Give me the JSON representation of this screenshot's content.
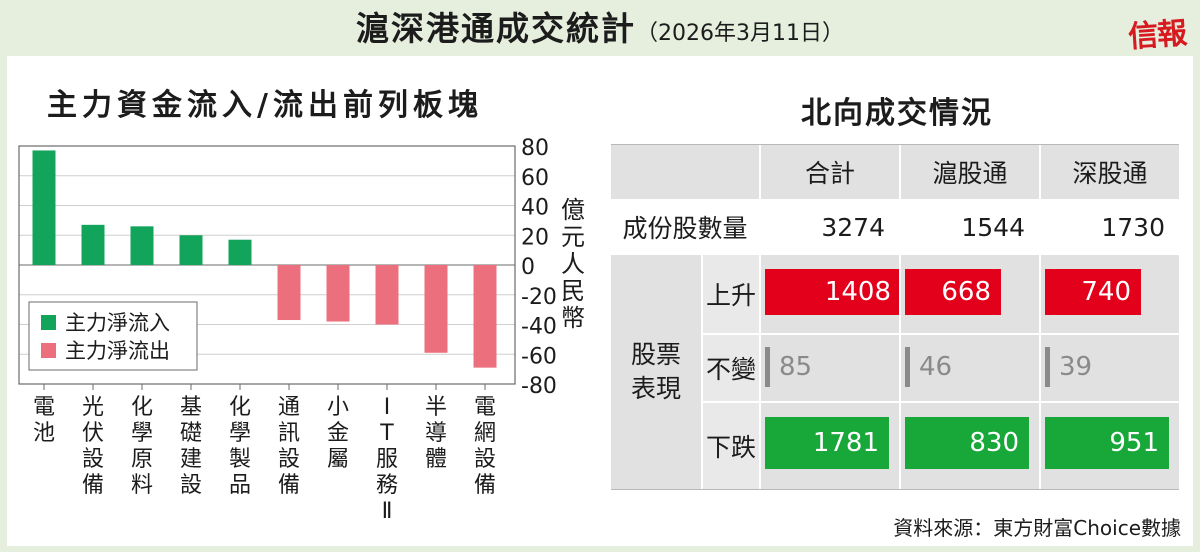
{
  "header": {
    "title": "滬深港通成交統計",
    "date": "（2026年3月11日）",
    "brand": "信報"
  },
  "chart_data": [
    {
      "type": "bar",
      "title": "主力資金流入/流出前列板塊",
      "categories": [
        "電池",
        "光伏設備",
        "化學原料",
        "基礎建設",
        "化學製品",
        "通訊設備",
        "小金屬",
        "IT服務Ⅱ",
        "半導體",
        "電網設備"
      ],
      "values": [
        77,
        27,
        26,
        20,
        17,
        -37,
        -38,
        -40,
        -59,
        -69
      ],
      "ylabel": "億元人民幣",
      "ylim": [
        -80,
        80
      ],
      "yticks": [
        80,
        60,
        40,
        20,
        0,
        -20,
        -40,
        -60,
        -80
      ],
      "grid": true,
      "legend_position": "bottom-left",
      "legend": [
        {
          "name": "主力淨流入",
          "color": "#12a45a"
        },
        {
          "name": "主力淨流出",
          "color": "#ec6f7d"
        }
      ]
    },
    {
      "type": "table",
      "title": "北向成交情況",
      "columns": [
        "合計",
        "滬股通",
        "深股通"
      ],
      "rows": [
        {
          "label": "成份股數量",
          "values": [
            3274,
            1544,
            1730
          ]
        },
        {
          "group": "股票表現",
          "label": "上升",
          "values": [
            1408,
            668,
            740
          ]
        },
        {
          "group": "股票表現",
          "label": "不變",
          "values": [
            85,
            46,
            39
          ]
        },
        {
          "group": "股票表現",
          "label": "下跌",
          "values": [
            1781,
            830,
            951
          ]
        }
      ]
    }
  ],
  "table": {
    "title": "北向成交情況",
    "col_headers": [
      "合計",
      "滬股通",
      "深股通"
    ],
    "row_constituents": {
      "label": "成份股數量",
      "values": [
        "3274",
        "1544",
        "1730"
      ]
    },
    "group_label": "股票\n表現",
    "row_up": {
      "label": "上升",
      "values": [
        "1408",
        "668",
        "740"
      ]
    },
    "row_flat": {
      "label": "不變",
      "values": [
        "85",
        "46",
        "39"
      ]
    },
    "row_down": {
      "label": "下跌",
      "values": [
        "1781",
        "830",
        "951"
      ]
    }
  },
  "colors": {
    "inflow": "#12a45a",
    "outflow": "#ec6f7d",
    "up": "#e3001b",
    "down": "#18a83a",
    "unchanged": "#8a8a8a",
    "brand": "#d71920",
    "background": "#e6efde"
  },
  "source": "資料來源：東方財富Choice數據"
}
